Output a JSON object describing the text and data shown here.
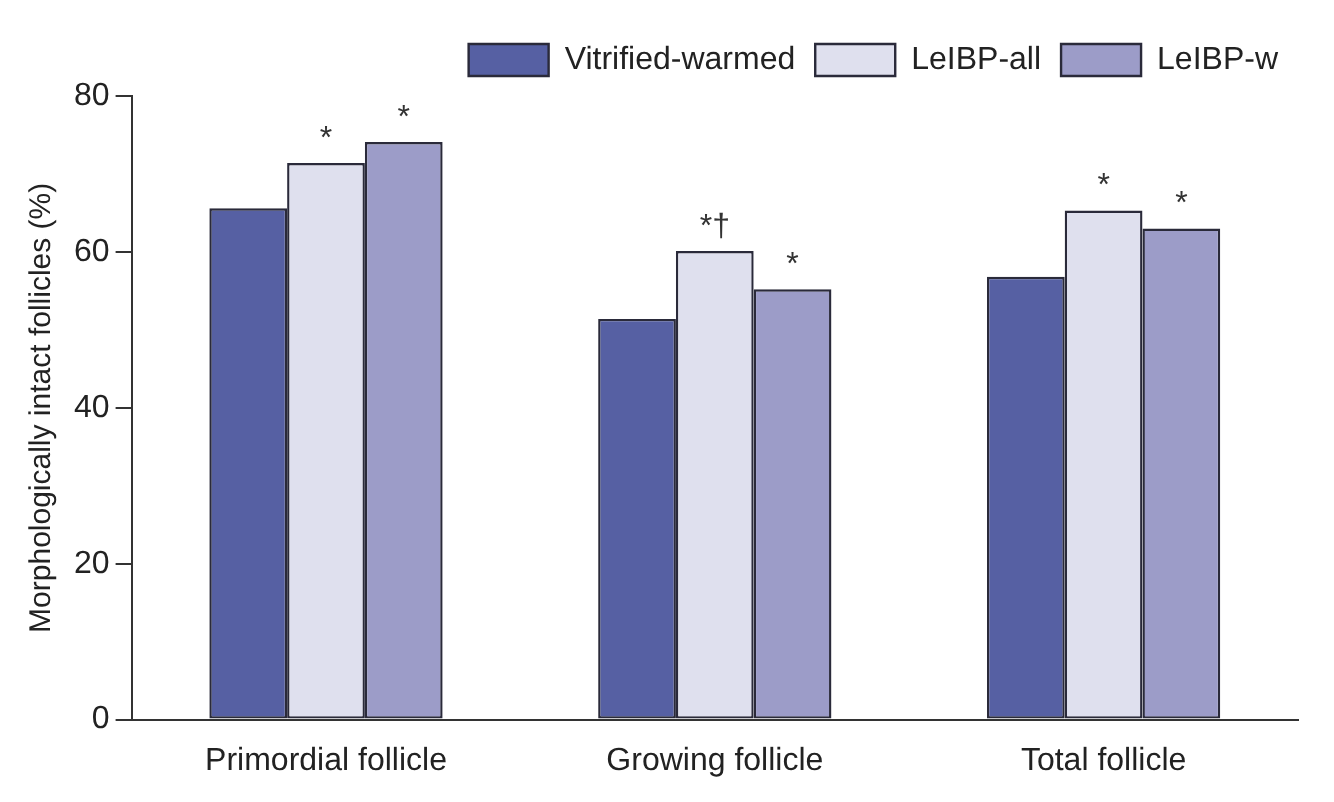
{
  "chart_data": {
    "type": "bar",
    "ylabel": "Morphologically intact follicles (%)",
    "categories": [
      "Primordial follicle",
      "Growing follicle",
      "Total follicle"
    ],
    "series": [
      {
        "name": "Vitrified-warmed",
        "color": "#5660a3",
        "values": [
          65.6,
          51.4,
          56.8
        ]
      },
      {
        "name": "LeIBP-all",
        "color": "#dfe0ee",
        "values": [
          71.4,
          60.1,
          65.3
        ],
        "value_labels": [
          "*",
          "*†",
          "*"
        ]
      },
      {
        "name": "LeIBP-w",
        "color": "#9c9cc8",
        "values": [
          74.1,
          55.2,
          63.0
        ],
        "value_labels": [
          "*",
          "*",
          "*"
        ]
      }
    ],
    "ylim": [
      0,
      80
    ],
    "yticks": [
      0,
      20,
      40,
      60,
      80
    ],
    "grid": false,
    "legend": "top right"
  }
}
